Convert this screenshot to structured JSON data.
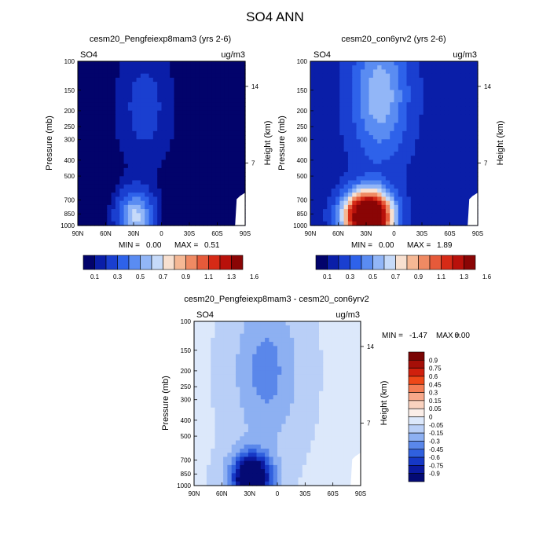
{
  "figure_title": "SO4 ANN",
  "chart_data": [
    {
      "type": "heatmap",
      "title": "cesm20_Pengfeiexp8mam3 (yrs 2-6)",
      "left_label": "SO4",
      "right_label": "ug/m3",
      "xlabel": "",
      "ylabel": "Pressure (mb)",
      "ylabel_right": "Height (km)",
      "x_ticks": [
        "90N",
        "60N",
        "30N",
        "0",
        "30S",
        "60S",
        "90S"
      ],
      "y_ticks": [
        "100",
        "150",
        "200",
        "250",
        "300",
        "400",
        "500",
        "700",
        "850",
        "1000"
      ],
      "y_ticks_right": [
        "14",
        "7"
      ],
      "stats": {
        "min_label": "MIN =",
        "min": "0.00",
        "max_label": "MAX =",
        "max": "0.51"
      },
      "colorbar_labels": [
        "0.1",
        "0.3",
        "0.5",
        "0.7",
        "0.9",
        "1.1",
        "1.3",
        "1.6"
      ],
      "field": {
        "peak_value": 0.51,
        "peak_lat": 28,
        "peak_p": 880,
        "lat_spread": 18,
        "plume_lat": 18,
        "plume_p": 190
      }
    },
    {
      "type": "heatmap",
      "title": "cesm20_con6yrv2 (yrs 2-6)",
      "left_label": "SO4",
      "right_label": "ug/m3",
      "xlabel": "",
      "ylabel": "Pressure (mb)",
      "ylabel_right": "Height (km)",
      "x_ticks": [
        "90N",
        "60N",
        "30N",
        "0",
        "30S",
        "60S",
        "90S"
      ],
      "y_ticks": [
        "100",
        "150",
        "200",
        "250",
        "300",
        "400",
        "500",
        "700",
        "850",
        "1000"
      ],
      "y_ticks_right": [
        "14",
        "7"
      ],
      "stats": {
        "min_label": "MIN =",
        "min": "0.00",
        "max_label": "MAX =",
        "max": "1.89"
      },
      "colorbar_labels": [
        "0.1",
        "0.3",
        "0.5",
        "0.7",
        "0.9",
        "1.1",
        "1.3",
        "1.6"
      ],
      "field": {
        "peak_value": 1.89,
        "peak_lat": 28,
        "peak_p": 880,
        "lat_spread": 24,
        "plume_lat": 15,
        "plume_p": 160
      }
    },
    {
      "type": "heatmap",
      "title": "cesm20_Pengfeiexp8mam3 - cesm20_con6yrv2",
      "left_label": "SO4",
      "right_label": "ug/m3",
      "xlabel": "",
      "ylabel": "Pressure (mb)",
      "ylabel_right": "Height (km)",
      "x_ticks": [
        "90N",
        "60N",
        "30N",
        "0",
        "30S",
        "60S",
        "90S"
      ],
      "y_ticks": [
        "100",
        "150",
        "200",
        "250",
        "300",
        "400",
        "500",
        "700",
        "850",
        "1000"
      ],
      "y_ticks_right": [
        "14",
        "7"
      ],
      "stats": {
        "min_label": "MIN =",
        "min": "-1.47",
        "max_label": "MAX =",
        "max": "0.00"
      },
      "colorbar_labels": [
        "0.9",
        "0.75",
        "0.6",
        "0.45",
        "0.3",
        "0.15",
        "0.05",
        "0",
        "-0.05",
        "-0.15",
        "-0.3",
        "-0.45",
        "-0.6",
        "-0.75",
        "-0.9"
      ],
      "field": {
        "peak_value": -1.47,
        "peak_lat": 28,
        "peak_p": 900,
        "lat_spread": 20,
        "plume_lat": 12,
        "plume_p": 200
      }
    }
  ],
  "colors": {
    "abs_scale": [
      "#02036b",
      "#0a1ea8",
      "#1a3fd0",
      "#2e62ea",
      "#5a8cf2",
      "#92b6f7",
      "#c6daf9",
      "#f8e0d0",
      "#f5b895",
      "#ef8a63",
      "#e65a3a",
      "#d62a16",
      "#b8110b",
      "#8a0505"
    ],
    "diff_scale": [
      "#7a0403",
      "#a50f08",
      "#d0200d",
      "#ee4818",
      "#f47d54",
      "#f7a88a",
      "#fad2bf",
      "#fbeee8",
      "#dce8fb",
      "#b9cff7",
      "#8db0f2",
      "#5a87ea",
      "#3060de",
      "#1638c6",
      "#0b1aa0",
      "#040a74"
    ]
  }
}
